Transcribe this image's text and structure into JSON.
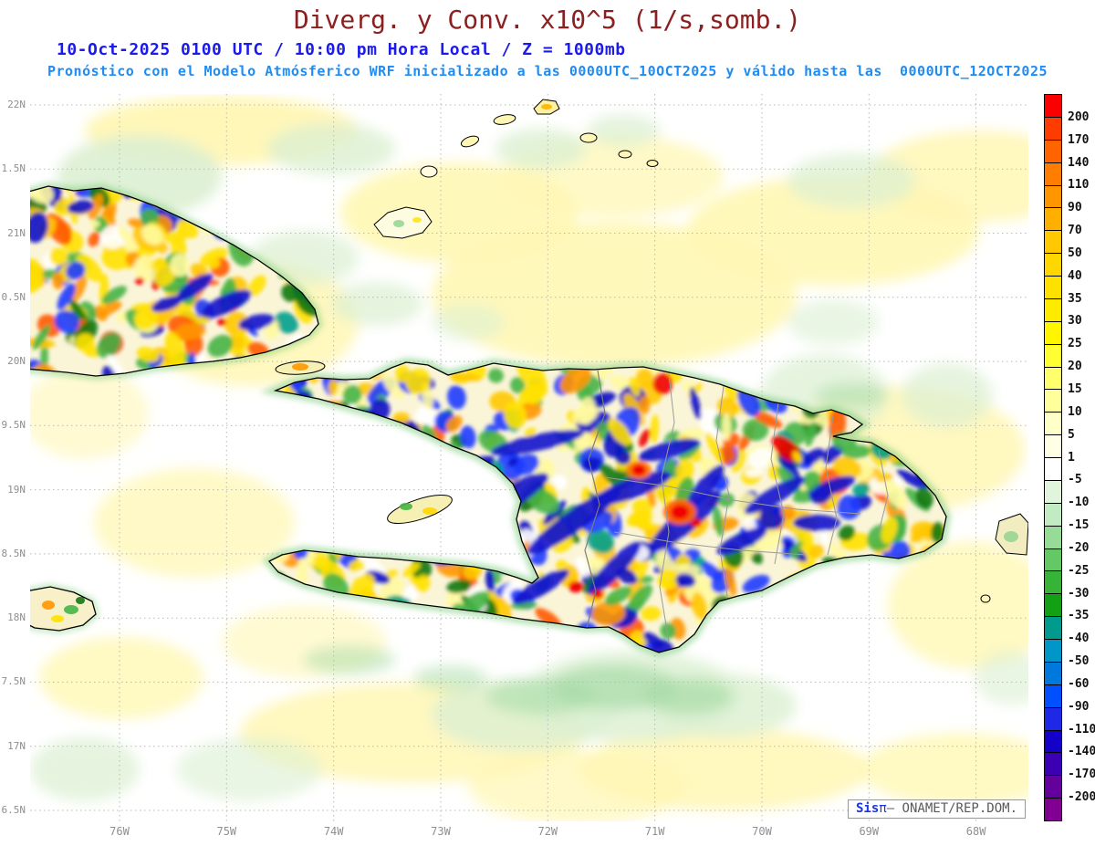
{
  "header": {
    "title": "Diverg. y Conv. x10^5 (1/s,somb.)",
    "datetime_line": "10-Oct-2025 0100 UTC / 10:00 pm Hora Local / Z = 1000mb",
    "model_line": "Pronóstico con el Modelo Atmósferico WRF inicializado a las 0000UTC_10OCT2025 y válido hasta las  0000UTC_12OCT2025"
  },
  "axes": {
    "y_ticks": [
      "22N",
      "1.5N",
      "21N",
      "0.5N",
      "20N",
      "9.5N",
      "19N",
      "8.5N",
      "18N",
      "7.5N",
      "17N",
      "6.5N"
    ],
    "x_ticks": [
      "76W",
      "75W",
      "74W",
      "73W",
      "72W",
      "71W",
      "70W",
      "69W",
      "68W"
    ]
  },
  "colorbar": {
    "levels": [
      200,
      170,
      140,
      110,
      90,
      70,
      50,
      40,
      35,
      30,
      25,
      20,
      15,
      10,
      5,
      1,
      -5,
      -10,
      -15,
      -20,
      -25,
      -30,
      -35,
      -40,
      -50,
      -60,
      -90,
      -110,
      -140,
      -170,
      -200
    ],
    "colors": [
      "#fa0000",
      "#ff3c00",
      "#ff6400",
      "#ff7d00",
      "#ff9600",
      "#ffaf00",
      "#ffc800",
      "#ffd700",
      "#ffe100",
      "#ffeb00",
      "#fff500",
      "#ffff32",
      "#ffff6e",
      "#ffff9b",
      "#ffffc8",
      "#ffffe6",
      "#ffffff",
      "#e1f5dc",
      "#c3ebc3",
      "#96dc96",
      "#64c864",
      "#37b437",
      "#14a014",
      "#009b8c",
      "#0096c8",
      "#0078dc",
      "#0050ff",
      "#1e28e6",
      "#1400c8",
      "#3c00b4",
      "#64009b",
      "#820091"
    ]
  },
  "branding": {
    "sis": "Sis",
    "pi": "π",
    "rest": "– ONAMET/REP.DOM."
  }
}
